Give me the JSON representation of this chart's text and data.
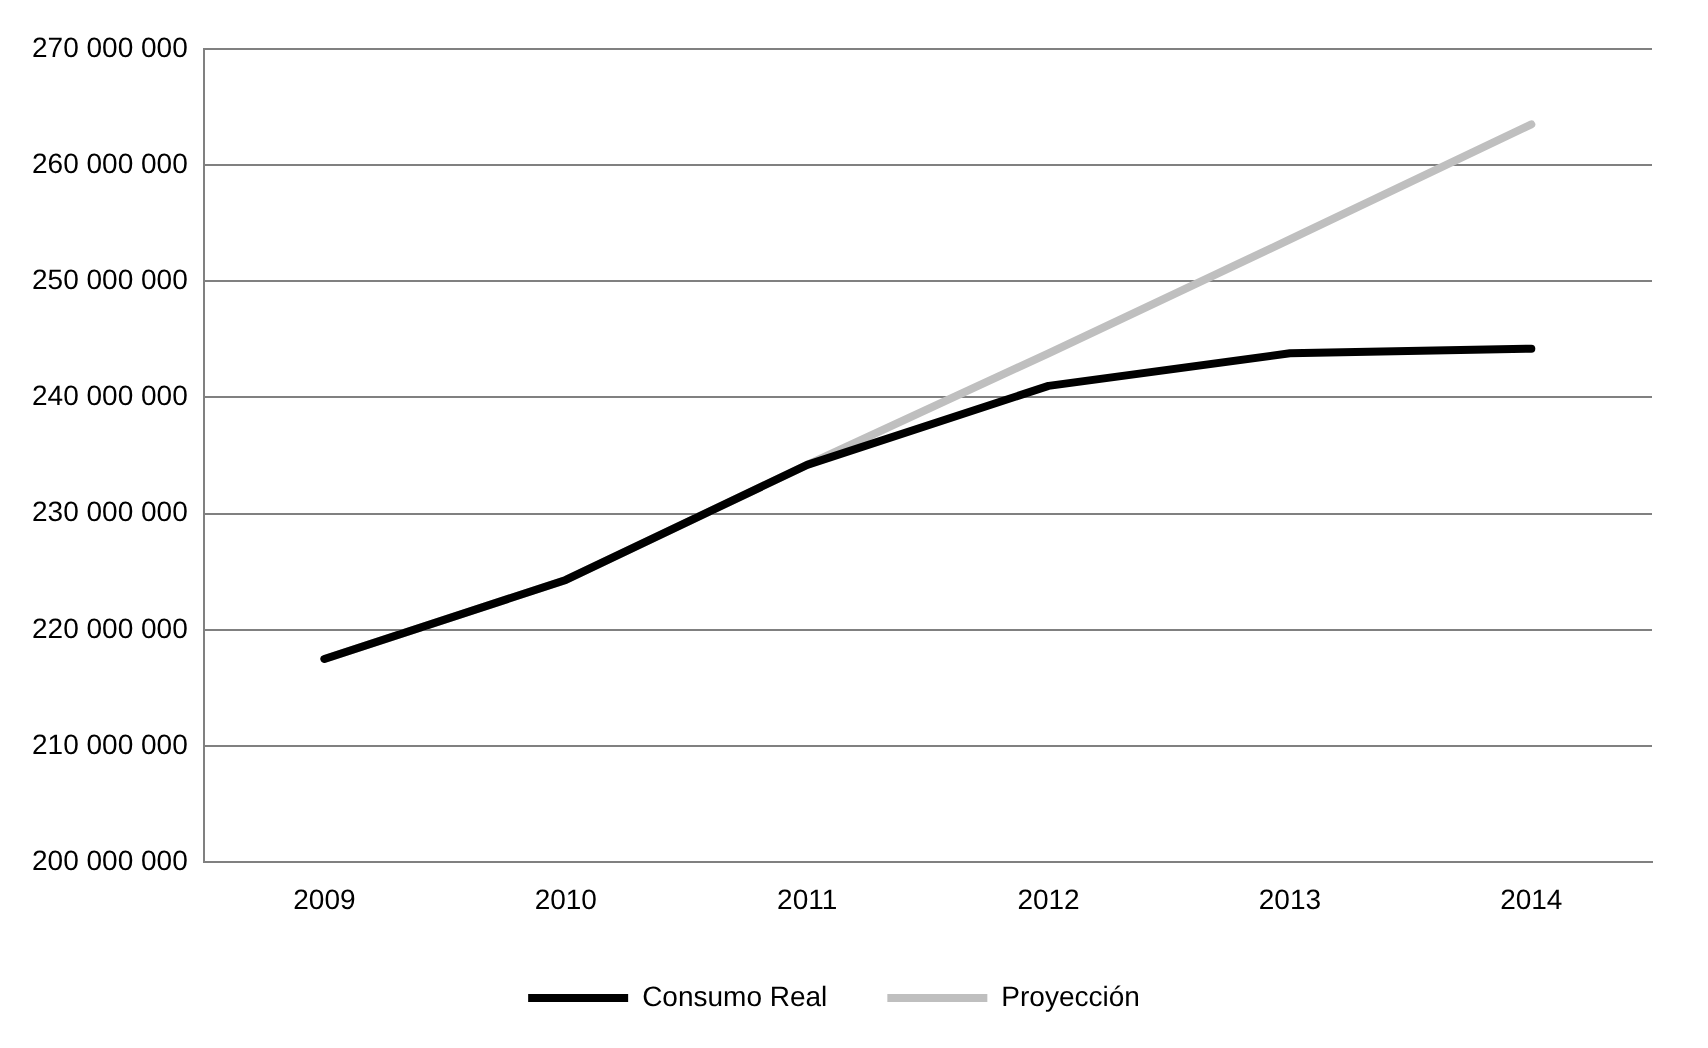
{
  "chart_data": {
    "type": "line",
    "categories": [
      "2009",
      "2010",
      "2011",
      "2012",
      "2013",
      "2014"
    ],
    "series": [
      {
        "name": "Consumo Real",
        "color": "#000000",
        "values": [
          217500000,
          224300000,
          234200000,
          241000000,
          243800000,
          244200000
        ]
      },
      {
        "name": "Proyección",
        "color": "#bfbfbf",
        "values": [
          217500000,
          224300000,
          234200000,
          243800000,
          253600000,
          263500000
        ]
      }
    ],
    "ylim": [
      200000000,
      270000000
    ],
    "yticks": [
      {
        "value": 200000000,
        "label": "200 000 000"
      },
      {
        "value": 210000000,
        "label": "210 000 000"
      },
      {
        "value": 220000000,
        "label": "220 000 000"
      },
      {
        "value": 230000000,
        "label": "230 000 000"
      },
      {
        "value": 240000000,
        "label": "240 000 000"
      },
      {
        "value": 250000000,
        "label": "250 000 000"
      },
      {
        "value": 260000000,
        "label": "260 000 000"
      },
      {
        "value": 270000000,
        "label": "270 000 000"
      }
    ],
    "grid": "y",
    "legend": "bottom",
    "marker": "none",
    "line_style": "solid"
  }
}
